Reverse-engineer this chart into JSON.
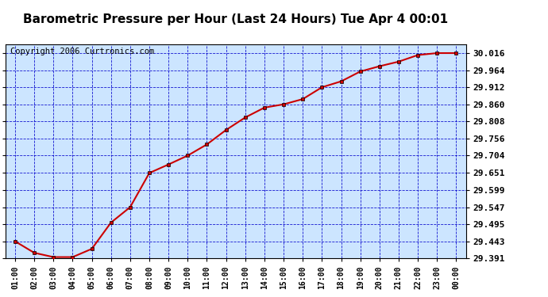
{
  "title": "Barometric Pressure per Hour (Last 24 Hours) Tue Apr 4 00:01",
  "copyright": "Copyright 2006 Curtronics.com",
  "x_labels": [
    "01:00",
    "02:00",
    "03:00",
    "04:00",
    "05:00",
    "06:00",
    "07:00",
    "08:00",
    "09:00",
    "10:00",
    "11:00",
    "12:00",
    "13:00",
    "14:00",
    "15:00",
    "16:00",
    "17:00",
    "18:00",
    "19:00",
    "20:00",
    "21:00",
    "22:00",
    "23:00",
    "00:00"
  ],
  "y_values": [
    29.443,
    29.408,
    29.395,
    29.395,
    29.42,
    29.5,
    29.547,
    29.651,
    29.677,
    29.704,
    29.738,
    29.782,
    29.82,
    29.85,
    29.86,
    29.876,
    29.912,
    29.93,
    29.96,
    29.976,
    29.99,
    30.01,
    30.016,
    30.016
  ],
  "ylim_min": 29.391,
  "ylim_max": 30.042,
  "y_ticks": [
    29.391,
    29.443,
    29.495,
    29.547,
    29.599,
    29.651,
    29.704,
    29.756,
    29.808,
    29.86,
    29.912,
    29.964,
    30.016
  ],
  "line_color": "#cc0000",
  "marker_color": "#cc0000",
  "bg_color": "#cce5ff",
  "grid_color": "#0000cc",
  "title_fontsize": 11,
  "copyright_fontsize": 7.5
}
